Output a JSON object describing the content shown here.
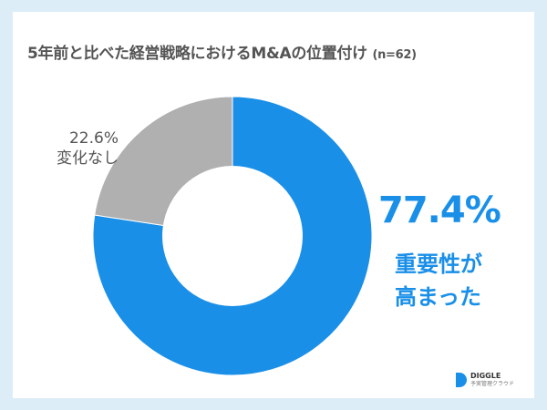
{
  "title": "5年前と比べた経営戦略におけるM&Aの位置付け",
  "sample_size": "(n=62)",
  "labels": {
    "gray_pct": "22.6%",
    "gray_text": "変化なし",
    "blue_pct": "77.4%",
    "blue_text_line1": "重要性が",
    "blue_text_line2": "高まった"
  },
  "logo": {
    "name": "DIGGLE",
    "subtitle": "予実管理クラウド"
  },
  "colors": {
    "blue": "#1a8fe8",
    "gray": "#b0b0b0",
    "background": "#dcedf8"
  },
  "chart_data": {
    "type": "pie",
    "donut": true,
    "title": "5年前と比べた経営戦略におけるM&Aの位置付け (n=62)",
    "categories": [
      "重要性が高まった",
      "変化なし"
    ],
    "values": [
      77.4,
      22.6
    ],
    "colors": [
      "#1a8fe8",
      "#b0b0b0"
    ],
    "start_angle": "12 o'clock, clockwise",
    "legend": "none (direct labels)"
  }
}
